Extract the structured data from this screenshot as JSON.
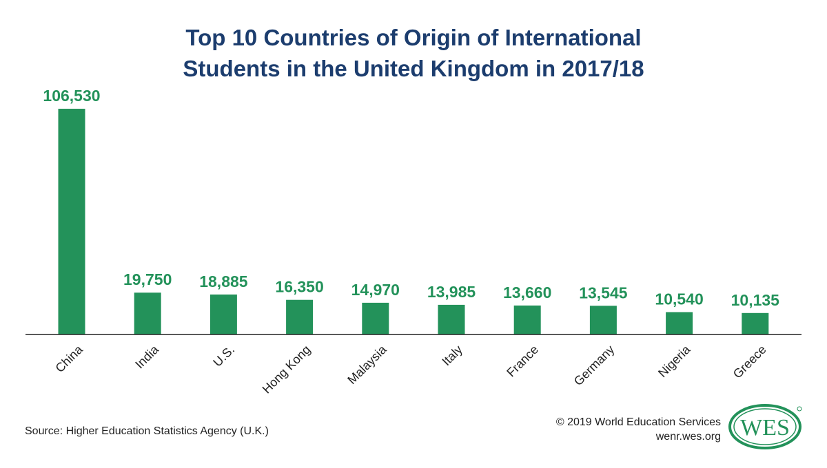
{
  "chart_data": {
    "type": "bar",
    "title": "Top 10 Countries of Origin of International Students in the United Kingdom in 2017/18",
    "title_lines": [
      "Top 10 Countries of Origin of International",
      "Students in the United Kingdom in 2017/18"
    ],
    "categories": [
      "China",
      "India",
      "U.S.",
      "Hong Kong",
      "Malaysia",
      "Italy",
      "France",
      "Germany",
      "Nigeria",
      "Greece"
    ],
    "values": [
      106530,
      19750,
      18885,
      16350,
      14970,
      13985,
      13660,
      13545,
      10540,
      10135
    ],
    "value_labels": [
      "106,530",
      "19,750",
      "18,885",
      "16,350",
      "14,970",
      "13,985",
      "13,660",
      "13,545",
      "10,540",
      "10,135"
    ],
    "xlabel": "",
    "ylabel": "",
    "ylim": [
      0,
      106530
    ],
    "grid": false,
    "bar_color": "#23925a",
    "label_color": "#23925a",
    "title_color": "#1c3d6e"
  },
  "source": "Source: Higher Education Statistics Agency (U.K.)",
  "copyright": "© 2019 World Education Services",
  "website": "wenr.wes.org",
  "logo": {
    "text": "WES",
    "color": "#23925a"
  }
}
